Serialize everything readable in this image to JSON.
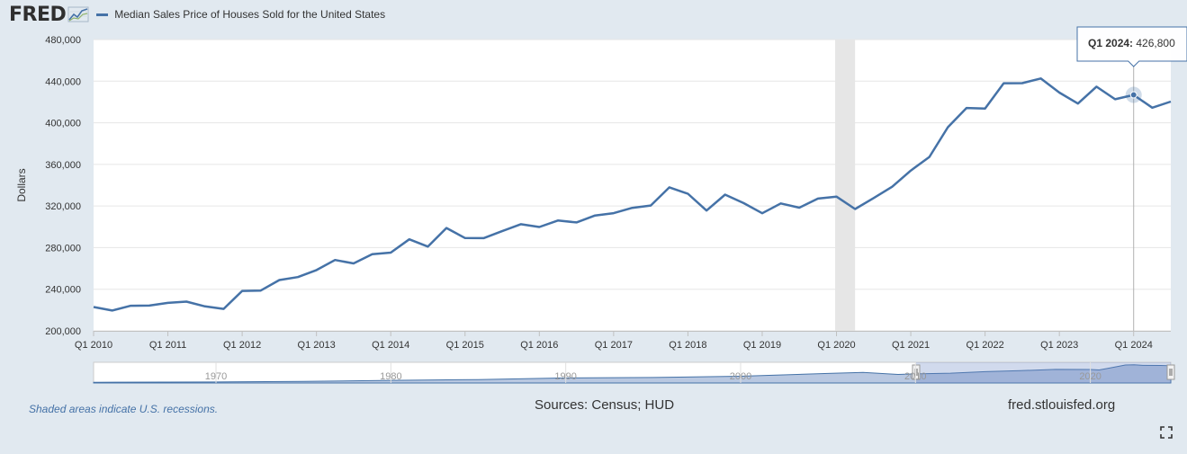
{
  "header": {
    "logo_text": "FRED",
    "logo_icon": "line-chart-icon",
    "series_legend": "Median Sales Price of Houses Sold for the United States"
  },
  "chart_data": {
    "type": "line",
    "title": "",
    "xlabel": "",
    "ylabel": "Dollars",
    "ylim": [
      200000,
      480000
    ],
    "y_ticks": [
      200000,
      240000,
      280000,
      320000,
      360000,
      400000,
      440000,
      480000
    ],
    "y_tick_labels": [
      "200,000",
      "240,000",
      "280,000",
      "320,000",
      "360,000",
      "400,000",
      "440,000",
      "480,000"
    ],
    "x_tick_labels": [
      "Q1 2010",
      "Q1 2011",
      "Q1 2012",
      "Q1 2013",
      "Q1 2014",
      "Q1 2015",
      "Q1 2016",
      "Q1 2017",
      "Q1 2018",
      "Q1 2019",
      "Q1 2020",
      "Q1 2021",
      "Q1 2022",
      "Q1 2023",
      "Q1 2024"
    ],
    "grid": true,
    "series": [
      {
        "name": "Median Sales Price of Houses Sold for the United States",
        "color": "#4572a7",
        "x": [
          "2010-Q1",
          "2010-Q2",
          "2010-Q3",
          "2010-Q4",
          "2011-Q1",
          "2011-Q2",
          "2011-Q3",
          "2011-Q4",
          "2012-Q1",
          "2012-Q2",
          "2012-Q3",
          "2012-Q4",
          "2013-Q1",
          "2013-Q2",
          "2013-Q3",
          "2013-Q4",
          "2014-Q1",
          "2014-Q2",
          "2014-Q3",
          "2014-Q4",
          "2015-Q1",
          "2015-Q2",
          "2015-Q3",
          "2015-Q4",
          "2016-Q1",
          "2016-Q2",
          "2016-Q3",
          "2016-Q4",
          "2017-Q1",
          "2017-Q2",
          "2017-Q3",
          "2017-Q4",
          "2018-Q1",
          "2018-Q2",
          "2018-Q3",
          "2018-Q4",
          "2019-Q1",
          "2019-Q2",
          "2019-Q3",
          "2019-Q4",
          "2020-Q1",
          "2020-Q2",
          "2020-Q3",
          "2020-Q4",
          "2021-Q1",
          "2021-Q2",
          "2021-Q3",
          "2021-Q4",
          "2022-Q1",
          "2022-Q2",
          "2022-Q3",
          "2022-Q4",
          "2023-Q1",
          "2023-Q2",
          "2023-Q3",
          "2023-Q4",
          "2024-Q1",
          "2024-Q2",
          "2024-Q3"
        ],
        "values": [
          222900,
          219500,
          224100,
          224300,
          226900,
          228100,
          223500,
          221100,
          238400,
          238700,
          248800,
          251700,
          258400,
          268100,
          264800,
          273600,
          275200,
          288000,
          281000,
          298900,
          289200,
          289100,
          295800,
          302500,
          299800,
          306000,
          304200,
          310900,
          313100,
          318200,
          320500,
          337900,
          331800,
          315600,
          330900,
          322800,
          313000,
          322500,
          318400,
          327100,
          329000,
          317100,
          327600,
          338500,
          354100,
          367100,
          395700,
          414200,
          413600,
          438000,
          438100,
          442600,
          429000,
          418500,
          434700,
          422600,
          426800,
          414500,
          420400
        ]
      }
    ],
    "recessions": [
      {
        "start": "2020-Q1",
        "end": "2020-Q2"
      }
    ],
    "tooltip": {
      "label": "Q1 2024:",
      "value": "426,800",
      "x": "2024-Q1"
    },
    "navigator": {
      "tick_labels": [
        "1970",
        "1980",
        "1990",
        "2000",
        "2010",
        "2020"
      ],
      "selected_range": [
        "2010-Q1",
        "2024-Q3"
      ]
    }
  },
  "footer": {
    "recession_note": "Shaded areas indicate U.S. recessions.",
    "sources": "Sources: Census; HUD",
    "url": "fred.stlouisfed.org",
    "fullscreen_icon": "fullscreen-icon"
  },
  "colors": {
    "background": "#e1e9f0",
    "series": "#4572a7",
    "recession": "#e6e6e6",
    "navigator_fill": "#7f9bc9"
  }
}
